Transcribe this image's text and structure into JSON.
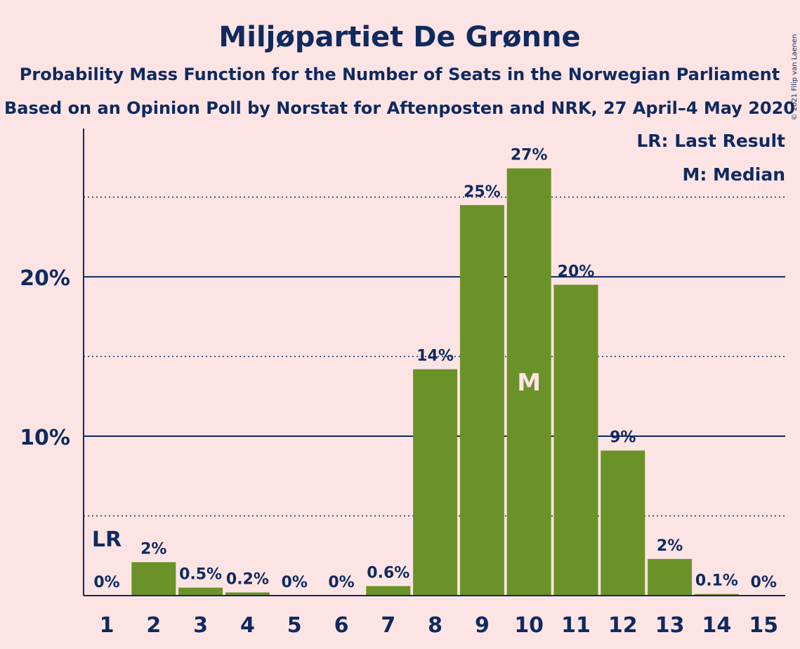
{
  "chart_data": {
    "type": "bar",
    "title": "Miljøpartiet De Grønne",
    "subtitle_1": "Probability Mass Function for the Number of Seats in the Norwegian Parliament",
    "subtitle_2": "Based on an Opinion Poll by Norstat for Aftenposten and NRK, 27 April–4 May 2020",
    "categories": [
      "1",
      "2",
      "3",
      "4",
      "5",
      "6",
      "7",
      "8",
      "9",
      "10",
      "11",
      "12",
      "13",
      "14",
      "15"
    ],
    "values": [
      0,
      2.1,
      0.5,
      0.2,
      0,
      0,
      0.6,
      14.2,
      24.5,
      26.8,
      19.5,
      9.1,
      2.3,
      0.1,
      0
    ],
    "labels": [
      "0%",
      "2%",
      "0.5%",
      "0.2%",
      "0%",
      "0%",
      "0.6%",
      "14%",
      "25%",
      "27%",
      "20%",
      "9%",
      "2%",
      "0.1%",
      "0%"
    ],
    "ylim": [
      0,
      29.3
    ],
    "y_ticks": [
      10,
      20
    ],
    "y_tick_labels": [
      "10%",
      "20%"
    ],
    "y_minor_gridlines": [
      5,
      15,
      25
    ],
    "bar_color": "#6b9228",
    "last_result_seat": "1",
    "last_result_marker": "LR",
    "median_seat": "10",
    "median_marker": "M",
    "legend": {
      "position": "top-right",
      "entries": [
        "LR: Last Result",
        "M: Median"
      ]
    },
    "copyright": "© 2021 Filip van Laenen"
  }
}
